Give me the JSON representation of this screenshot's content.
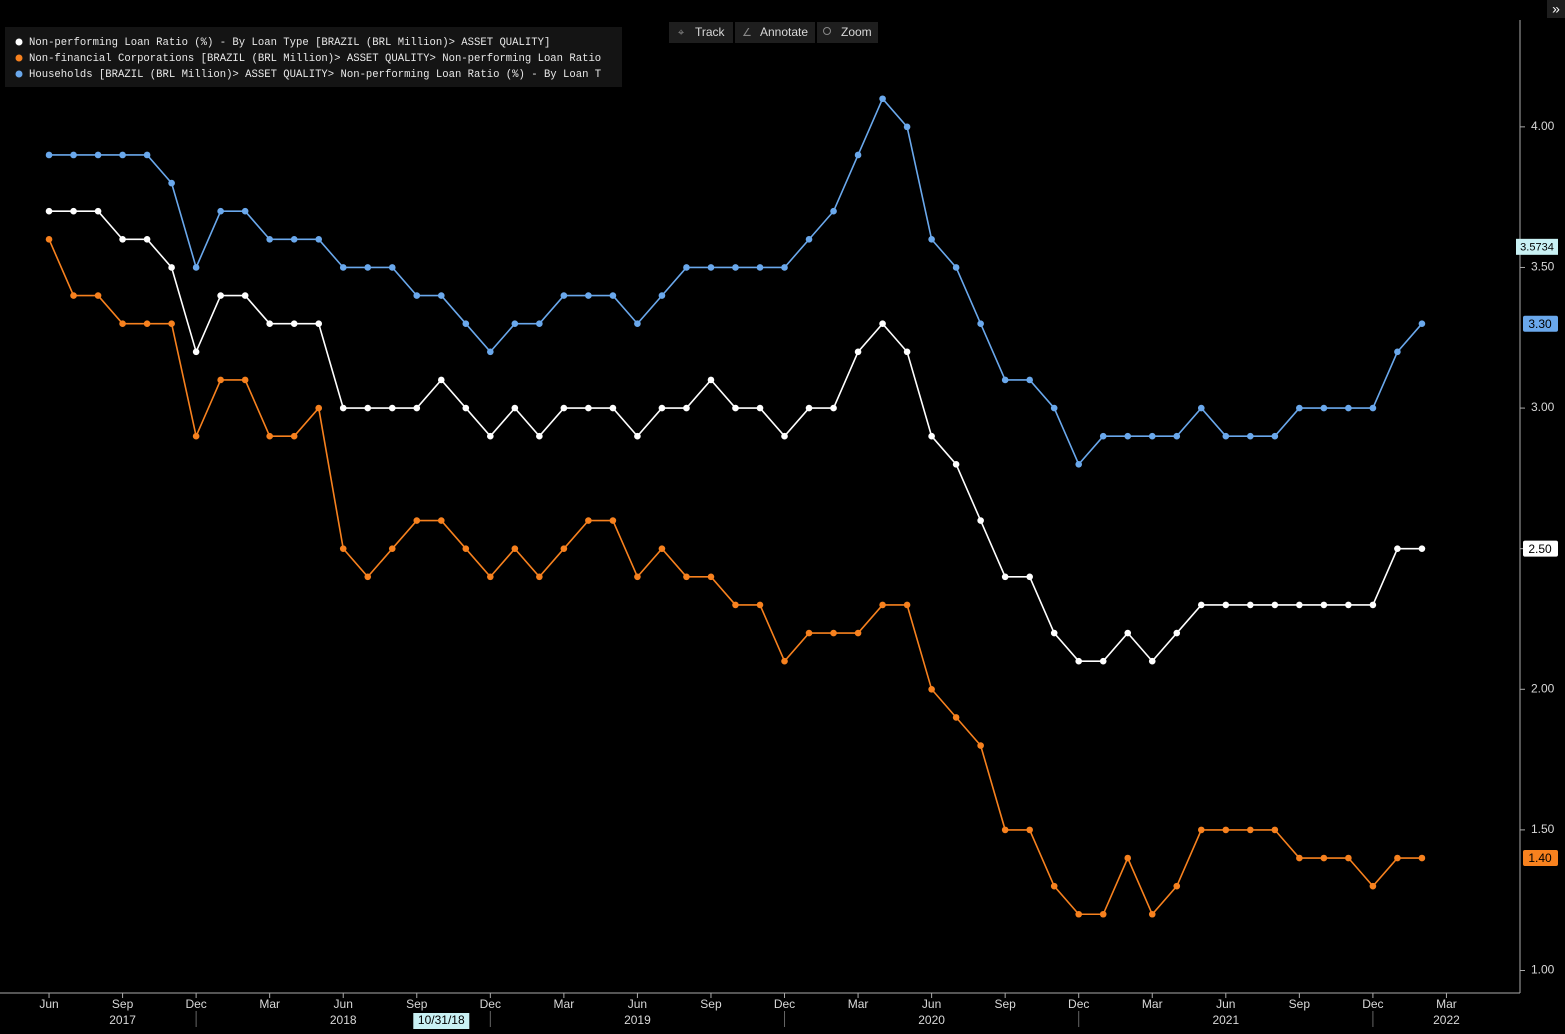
{
  "toolbar": [
    "Track",
    "Annotate",
    "Zoom"
  ],
  "corner_button": "»",
  "chart_data": {
    "type": "line",
    "x": [
      "2017-06",
      "2017-07",
      "2017-08",
      "2017-09",
      "2017-10",
      "2017-11",
      "2017-12",
      "2018-01",
      "2018-02",
      "2018-03",
      "2018-04",
      "2018-05",
      "2018-06",
      "2018-07",
      "2018-08",
      "2018-09",
      "2018-10",
      "2018-11",
      "2018-12",
      "2019-01",
      "2019-02",
      "2019-03",
      "2019-04",
      "2019-05",
      "2019-06",
      "2019-07",
      "2019-08",
      "2019-09",
      "2019-10",
      "2019-11",
      "2019-12",
      "2020-01",
      "2020-02",
      "2020-03",
      "2020-04",
      "2020-05",
      "2020-06",
      "2020-07",
      "2020-08",
      "2020-09",
      "2020-10",
      "2020-11",
      "2020-12",
      "2021-01",
      "2021-02",
      "2021-03",
      "2021-04",
      "2021-05",
      "2021-06",
      "2021-07",
      "2021-08",
      "2021-09",
      "2021-10",
      "2021-11",
      "2021-12",
      "2022-01",
      "2022-02"
    ],
    "series": [
      {
        "name": "Non-performing Loan Ratio (%) - By Loan Type [BRAZIL (BRL Million)> ASSET QUALITY]",
        "color": "#ffffff",
        "last_label": "2.50",
        "values": [
          3.7,
          3.7,
          3.7,
          3.6,
          3.6,
          3.5,
          3.2,
          3.4,
          3.4,
          3.3,
          3.3,
          3.3,
          3.0,
          3.0,
          3.0,
          3.0,
          3.1,
          3.0,
          2.9,
          3.0,
          2.9,
          3.0,
          3.0,
          3.0,
          2.9,
          3.0,
          3.0,
          3.1,
          3.0,
          3.0,
          2.9,
          3.0,
          3.0,
          3.2,
          3.3,
          3.2,
          2.9,
          2.8,
          2.6,
          2.4,
          2.4,
          2.2,
          2.1,
          2.1,
          2.2,
          2.1,
          2.2,
          2.3,
          2.3,
          2.3,
          2.3,
          2.3,
          2.3,
          2.3,
          2.3,
          2.5,
          2.5
        ]
      },
      {
        "name": "Non-financial Corporations [BRAZIL (BRL Million)> ASSET QUALITY> Non-performing Loan Ratio",
        "color": "#f7811e",
        "last_label": "1.40",
        "values": [
          3.6,
          3.4,
          3.4,
          3.3,
          3.3,
          3.3,
          2.9,
          3.1,
          3.1,
          2.9,
          2.9,
          3.0,
          2.5,
          2.4,
          2.5,
          2.6,
          2.6,
          2.5,
          2.4,
          2.5,
          2.4,
          2.5,
          2.6,
          2.6,
          2.4,
          2.5,
          2.4,
          2.4,
          2.3,
          2.3,
          2.1,
          2.2,
          2.2,
          2.2,
          2.3,
          2.3,
          2.0,
          1.9,
          1.8,
          1.5,
          1.5,
          1.3,
          1.2,
          1.2,
          1.4,
          1.2,
          1.3,
          1.5,
          1.5,
          1.5,
          1.5,
          1.4,
          1.4,
          1.4,
          1.3,
          1.4,
          1.4
        ]
      },
      {
        "name": "Households [BRAZIL (BRL Million)> ASSET QUALITY> Non-performing Loan Ratio (%) - By Loan T",
        "color": "#6aa8ec",
        "last_label": "3.30",
        "values": [
          3.9,
          3.9,
          3.9,
          3.9,
          3.9,
          3.8,
          3.5,
          3.7,
          3.7,
          3.6,
          3.6,
          3.6,
          3.5,
          3.5,
          3.5,
          3.4,
          3.4,
          3.3,
          3.2,
          3.3,
          3.3,
          3.4,
          3.4,
          3.4,
          3.3,
          3.4,
          3.5,
          3.5,
          3.5,
          3.5,
          3.5,
          3.6,
          3.7,
          3.9,
          4.1,
          4.0,
          3.6,
          3.5,
          3.3,
          3.1,
          3.1,
          3.0,
          2.8,
          2.9,
          2.9,
          2.9,
          2.9,
          3.0,
          2.9,
          2.9,
          2.9,
          3.0,
          3.0,
          3.0,
          3.0,
          3.2,
          3.3
        ]
      }
    ],
    "xlim": [
      "2017-04",
      "2022-06"
    ],
    "xticks": [
      {
        "value": "2017-06",
        "label": "Jun"
      },
      {
        "value": "2017-09",
        "label": "Sep"
      },
      {
        "value": "2017-12",
        "label": "Dec"
      },
      {
        "value": "2018-03",
        "label": "Mar"
      },
      {
        "value": "2018-06",
        "label": "Jun"
      },
      {
        "value": "2018-09",
        "label": "Sep"
      },
      {
        "value": "2018-12",
        "label": "Dec"
      },
      {
        "value": "2019-03",
        "label": "Mar"
      },
      {
        "value": "2019-06",
        "label": "Jun"
      },
      {
        "value": "2019-09",
        "label": "Sep"
      },
      {
        "value": "2019-12",
        "label": "Dec"
      },
      {
        "value": "2020-03",
        "label": "Mar"
      },
      {
        "value": "2020-06",
        "label": "Jun"
      },
      {
        "value": "2020-09",
        "label": "Sep"
      },
      {
        "value": "2020-12",
        "label": "Dec"
      },
      {
        "value": "2021-03",
        "label": "Mar"
      },
      {
        "value": "2021-06",
        "label": "Jun"
      },
      {
        "value": "2021-09",
        "label": "Sep"
      },
      {
        "value": "2021-12",
        "label": "Dec"
      },
      {
        "value": "2022-03",
        "label": "Mar"
      }
    ],
    "xyears": [
      {
        "value": "2017-09",
        "label": "2017"
      },
      {
        "value": "2018-06",
        "label": "2018"
      },
      {
        "value": "2019-06",
        "label": "2019"
      },
      {
        "value": "2020-06",
        "label": "2020"
      },
      {
        "value": "2021-06",
        "label": "2021"
      },
      {
        "value": "2022-03",
        "label": "2022"
      }
    ],
    "ylim": [
      0.92,
      4.38
    ],
    "yticks": [
      {
        "value": 1,
        "label": "1.00"
      },
      {
        "value": 1.5,
        "label": "1.50"
      },
      {
        "value": 2,
        "label": "2.00"
      },
      {
        "value": 2.5,
        "label": "2.50"
      },
      {
        "value": 3,
        "label": "3.00"
      },
      {
        "value": 3.5,
        "label": "3.50"
      },
      {
        "value": 4,
        "label": "4.00"
      }
    ],
    "cursor_value": 3.5734,
    "cursor_date": {
      "value": "2018-10",
      "label": "10/31/18"
    },
    "legend_position": "upper left"
  }
}
